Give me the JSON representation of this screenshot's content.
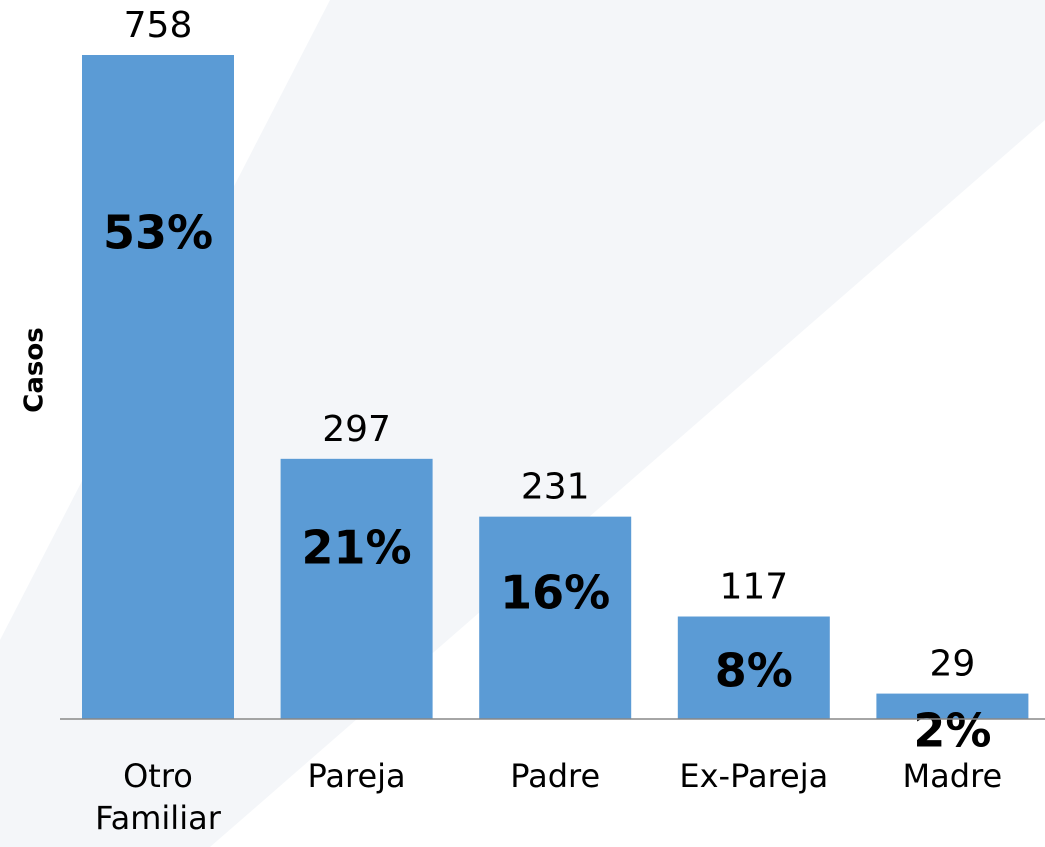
{
  "chart_data": {
    "type": "bar",
    "y_label": "Casos",
    "categories": [
      "Otro Familiar",
      "Pareja",
      "Padre",
      "Ex-Pareja",
      "Madre"
    ],
    "values": [
      758,
      297,
      231,
      117,
      29
    ],
    "shares": [
      53,
      21,
      16,
      8,
      2
    ],
    "share_labels": [
      "53%",
      "21%",
      "16%",
      "8%",
      "2%"
    ],
    "color": "#5b9bd5"
  }
}
